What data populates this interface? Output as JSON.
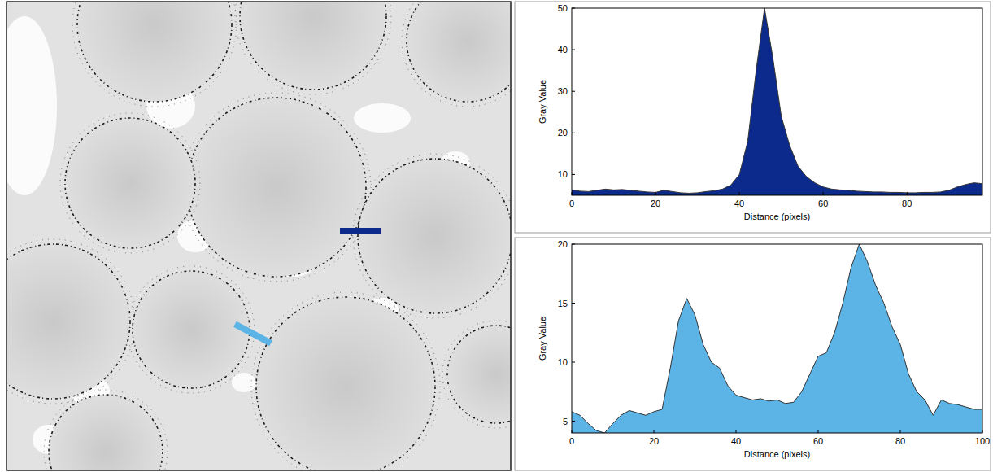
{
  "chart_data": [
    {
      "type": "area",
      "color": "#0b2a8c",
      "xlabel": "Distance (pixels)",
      "ylabel": "Gray Value",
      "x": [
        0,
        2,
        4,
        6,
        8,
        10,
        12,
        14,
        16,
        18,
        20,
        22,
        24,
        26,
        28,
        30,
        32,
        34,
        36,
        38,
        40,
        42,
        44,
        46,
        48,
        50,
        52,
        54,
        56,
        58,
        60,
        62,
        64,
        66,
        68,
        70,
        72,
        74,
        76,
        78,
        80,
        82,
        84,
        86,
        88,
        90,
        92,
        94,
        96,
        98
      ],
      "values": [
        6.3,
        6.0,
        5.9,
        6.2,
        6.5,
        6.3,
        6.4,
        6.2,
        6.0,
        5.8,
        5.7,
        6.2,
        5.9,
        5.6,
        5.5,
        5.6,
        5.9,
        6.1,
        6.5,
        7.5,
        10,
        18,
        35,
        50,
        38,
        24,
        17,
        12,
        9.5,
        8,
        7,
        6.5,
        6.3,
        6.2,
        6.0,
        5.9,
        5.8,
        5.8,
        5.7,
        5.7,
        5.6,
        5.6,
        5.7,
        5.7,
        5.8,
        6.2,
        7.0,
        7.6,
        8.0,
        7.8
      ],
      "xlim": [
        0,
        98
      ],
      "xticks": [
        0,
        20,
        40,
        60,
        80
      ],
      "ylim": [
        5,
        50
      ],
      "yticks": [
        10,
        20,
        30,
        40,
        50
      ],
      "grid": false
    },
    {
      "type": "area",
      "color": "#5bb4e5",
      "xlabel": "Distance (pixels)",
      "ylabel": "Gray Value",
      "x": [
        0,
        2,
        4,
        6,
        8,
        10,
        12,
        14,
        16,
        18,
        20,
        22,
        24,
        26,
        28,
        30,
        32,
        34,
        36,
        38,
        40,
        42,
        44,
        46,
        48,
        50,
        52,
        54,
        56,
        58,
        60,
        62,
        64,
        66,
        68,
        70,
        72,
        74,
        76,
        78,
        80,
        82,
        84,
        86,
        88,
        90,
        92,
        94,
        96,
        98,
        100
      ],
      "values": [
        5.8,
        5.5,
        4.8,
        4.2,
        4.0,
        4.8,
        5.5,
        5.9,
        5.7,
        5.5,
        5.8,
        6.0,
        9.5,
        13.5,
        15.4,
        14.0,
        11.5,
        10.0,
        9.5,
        8.0,
        7.2,
        7.0,
        6.8,
        6.9,
        6.7,
        6.8,
        6.5,
        6.6,
        7.5,
        9.0,
        10.5,
        10.8,
        12.5,
        15.0,
        18.0,
        20.0,
        18.5,
        16.5,
        15.0,
        13.0,
        11.5,
        9.0,
        7.5,
        6.8,
        5.5,
        6.8,
        6.5,
        6.4,
        6.2,
        6.0,
        6.0
      ],
      "xlim": [
        0,
        100
      ],
      "xticks": [
        0,
        20,
        40,
        60,
        80,
        100
      ],
      "ylim": [
        4,
        20
      ],
      "yticks": [
        5,
        10,
        15,
        20
      ],
      "grid": false
    }
  ]
}
